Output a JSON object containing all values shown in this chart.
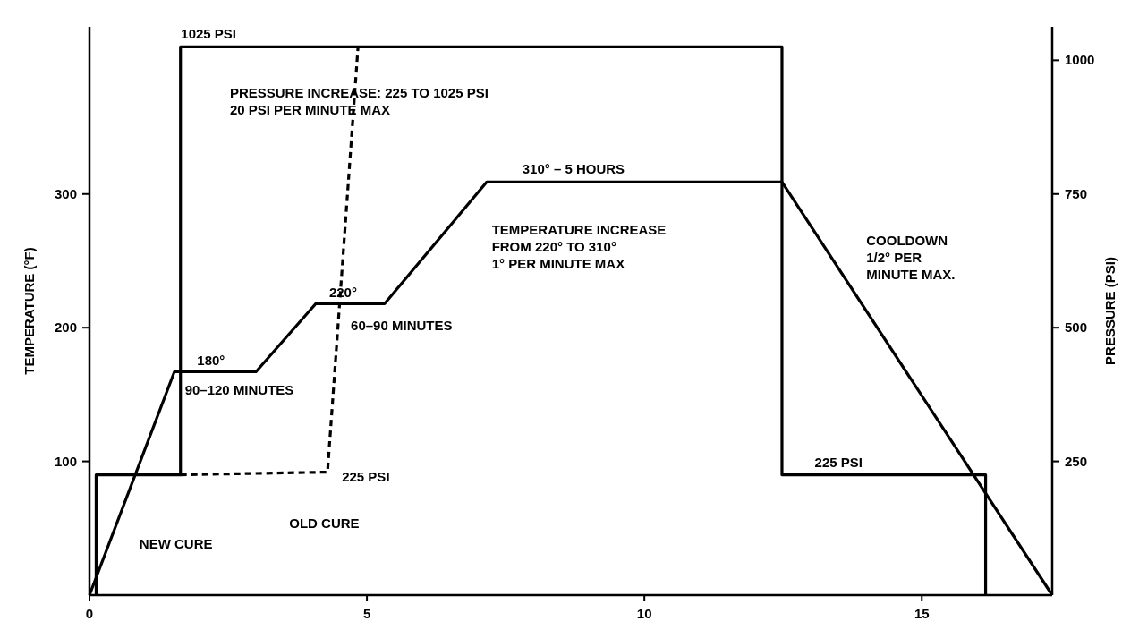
{
  "chart_data": {
    "type": "line",
    "xlabel": null,
    "ylabel": "TEMPERATURE (°F)",
    "y2label": "PRESSURE (PSI)",
    "xlim": [
      0,
      17.35
    ],
    "xticks": [
      0,
      5,
      10,
      15
    ],
    "ylim": [
      0,
      425
    ],
    "yticks": [
      100,
      200,
      300
    ],
    "y2lim": [
      0,
      1062.5
    ],
    "y2ticks": [
      250,
      500,
      750,
      1000
    ],
    "grid": false,
    "marker": "none",
    "series": [
      {
        "color": "#000000",
        "line_style": "solid",
        "x": [
          0,
          1.53,
          3.0,
          4.08,
          5.32,
          7.16,
          12.48,
          17.35
        ],
        "values": [
          0,
          167,
          167,
          218,
          218,
          309,
          309,
          0
        ]
      },
      {
        "color": "#000000",
        "line_style": "solid",
        "axis": "y2",
        "x": [
          0.12,
          0.12,
          1.64,
          1.64,
          12.48,
          12.48,
          16.15,
          16.15
        ],
        "values": [
          0,
          225,
          225,
          1025,
          1025,
          225,
          225,
          0
        ]
      },
      {
        "color": "#000000",
        "line_style": "dashed",
        "axis": "y2",
        "x": [
          1.64,
          4.29,
          4.84
        ],
        "values": [
          225,
          230,
          1025
        ]
      }
    ],
    "annotations": [
      "1025 PSI",
      "PRESSURE INCREASE:  225 TO 1025 PSI\n20 PSI PER MINUTE MAX",
      "180°",
      "90–120 MINUTES",
      "220°",
      "60–90 MINUTES",
      "225 PSI",
      "OLD CURE",
      "NEW CURE",
      "310° – 5 HOURS",
      "TEMPERATURE INCREASE\nFROM 220° TO 310°\n1° PER MINUTE MAX",
      "COOLDOWN\n1/2° PER\nMINUTE MAX.",
      "225 PSI"
    ]
  }
}
